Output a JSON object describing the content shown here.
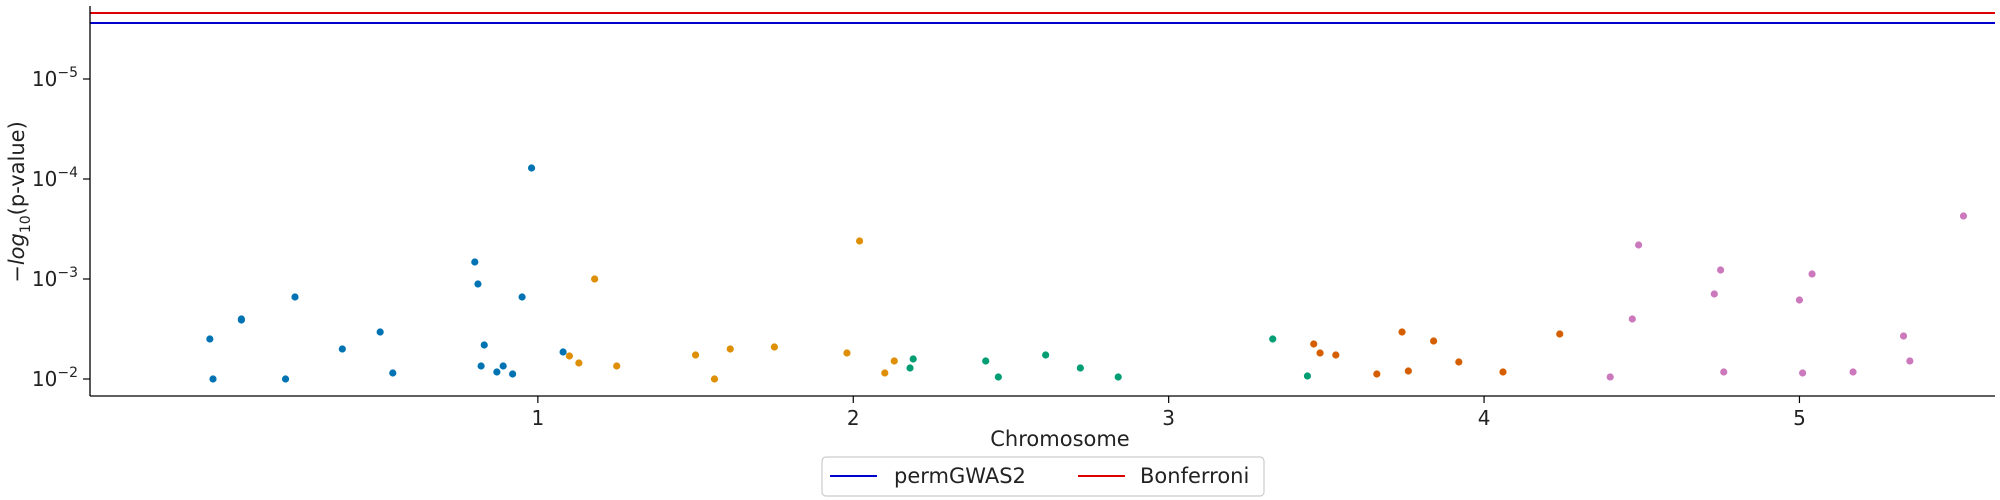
{
  "chart_data": {
    "type": "scatter",
    "title": "",
    "xlabel": "Chromosome",
    "ylabel": "−log10(p-value)",
    "ylabel_parts": {
      "prefix": "−log",
      "subscript": "10",
      "suffix": "(p-value)"
    },
    "x_ticks": [
      {
        "label": "1",
        "value": 1
      },
      {
        "label": "2",
        "value": 2
      },
      {
        "label": "3",
        "value": 3
      },
      {
        "label": "4",
        "value": 4
      },
      {
        "label": "5",
        "value": 5
      }
    ],
    "y_ticks": [
      {
        "exp": -2,
        "base": "10",
        "sup": "−2"
      },
      {
        "exp": -3,
        "base": "10",
        "sup": "−3"
      },
      {
        "exp": -4,
        "base": "10",
        "sup": "−4"
      },
      {
        "exp": -5,
        "base": "10",
        "sup": "−5"
      }
    ],
    "xlim": [
      -0.42,
      5.62
    ],
    "ylim_log10": [
      -1.83,
      -5.73
    ],
    "y_scale": "log (inverted)",
    "grid": false,
    "legend_position": "bottom-center",
    "thresholds": [
      {
        "name": "permGWAS2",
        "value_log10": -5.56,
        "color": "#0000cc"
      },
      {
        "name": "Bonferroni",
        "value_log10": -5.66,
        "color": "#dd0000"
      }
    ],
    "series": [
      {
        "chromosome": "1",
        "color": "#0173b2",
        "points": [
          [
            -0.04,
            -2.4
          ],
          [
            -0.03,
            -2.0
          ],
          [
            0.06,
            -2.6
          ],
          [
            0.06,
            -2.59
          ],
          [
            0.2,
            -2.0
          ],
          [
            0.23,
            -2.82
          ],
          [
            0.38,
            -2.3
          ],
          [
            0.5,
            -2.47
          ],
          [
            0.54,
            -2.06
          ],
          [
            0.8,
            -3.17
          ],
          [
            0.81,
            -2.95
          ],
          [
            0.82,
            -2.13
          ],
          [
            0.83,
            -2.34
          ],
          [
            0.87,
            -2.07
          ],
          [
            0.89,
            -2.13
          ],
          [
            0.92,
            -2.05
          ],
          [
            0.95,
            -2.82
          ],
          [
            0.98,
            -4.11
          ],
          [
            1.08,
            -2.27
          ]
        ]
      },
      {
        "chromosome": "2",
        "color": "#de8f05",
        "points": [
          [
            1.1,
            -2.23
          ],
          [
            1.13,
            -2.16
          ],
          [
            1.18,
            -3.0
          ],
          [
            1.25,
            -2.13
          ],
          [
            1.5,
            -2.24
          ],
          [
            1.56,
            -2.0
          ],
          [
            1.61,
            -2.3
          ],
          [
            1.75,
            -2.32
          ],
          [
            1.98,
            -2.26
          ],
          [
            2.02,
            -3.38
          ],
          [
            2.1,
            -2.06
          ],
          [
            2.13,
            -2.18
          ]
        ]
      },
      {
        "chromosome": "3",
        "color": "#029e73",
        "points": [
          [
            2.18,
            -2.11
          ],
          [
            2.19,
            -2.2
          ],
          [
            2.42,
            -2.18
          ],
          [
            2.46,
            -2.02
          ],
          [
            2.61,
            -2.24
          ],
          [
            2.72,
            -2.11
          ],
          [
            2.84,
            -2.02
          ],
          [
            3.33,
            -2.4
          ],
          [
            3.44,
            -2.03
          ]
        ]
      },
      {
        "chromosome": "4",
        "color": "#d55e00",
        "points": [
          [
            3.46,
            -2.35
          ],
          [
            3.48,
            -2.26
          ],
          [
            3.53,
            -2.24
          ],
          [
            3.66,
            -2.05
          ],
          [
            3.74,
            -2.47
          ],
          [
            3.76,
            -2.08
          ],
          [
            3.84,
            -2.38
          ],
          [
            3.92,
            -2.17
          ],
          [
            4.06,
            -2.07
          ],
          [
            4.24,
            -2.45
          ]
        ]
      },
      {
        "chromosome": "5",
        "color": "#cc78bc",
        "points": [
          [
            4.4,
            -2.02
          ],
          [
            4.47,
            -2.6
          ],
          [
            4.49,
            -3.34
          ],
          [
            4.73,
            -2.85
          ],
          [
            4.75,
            -3.09
          ],
          [
            4.76,
            -2.07
          ],
          [
            5.0,
            -2.79
          ],
          [
            5.01,
            -2.06
          ],
          [
            5.04,
            -3.05
          ],
          [
            5.17,
            -2.07
          ],
          [
            5.33,
            -2.43
          ],
          [
            5.35,
            -2.18
          ],
          [
            5.52,
            -3.63
          ]
        ]
      }
    ]
  }
}
